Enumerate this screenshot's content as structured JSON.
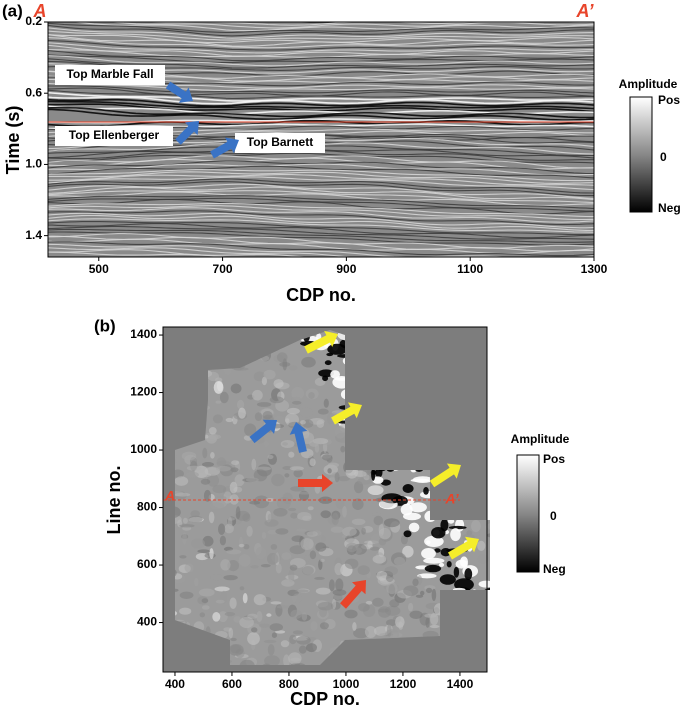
{
  "chart_data": [
    {
      "type": "image",
      "panel_label": "(a)",
      "xlabel": "CDP no.",
      "ylabel": "Time (s)",
      "xlim": [
        418,
        1300
      ],
      "ylim": [
        1.52,
        0.2
      ],
      "xticks": [
        500,
        700,
        900,
        1100,
        1300
      ],
      "yticks": [
        0.2,
        0.6,
        {
          "value": 1,
          "label": "1.0"
        },
        1.4
      ],
      "annotations": [
        "A",
        "A’",
        "Top Marble Fall",
        "Top Ellenberger",
        "Top Barnett"
      ],
      "colorbar": {
        "title": "Amplitude",
        "labels": [
          "Pos",
          "0",
          "Neg"
        ]
      }
    },
    {
      "type": "image",
      "panel_label": "(b)",
      "xlabel": "CDP no.",
      "ylabel": "Line no.",
      "xlim": [
        358,
        1495
      ],
      "ylim": [
        228,
        1428
      ],
      "xticks": [
        400,
        600,
        800,
        1000,
        1200,
        1400
      ],
      "yticks": [
        400,
        600,
        800,
        1000,
        1200,
        1400
      ],
      "annotations": [
        "A",
        "A’"
      ],
      "colorbar": {
        "title": "Amplitude",
        "labels": [
          "Pos",
          "0",
          "Neg"
        ]
      }
    }
  ]
}
